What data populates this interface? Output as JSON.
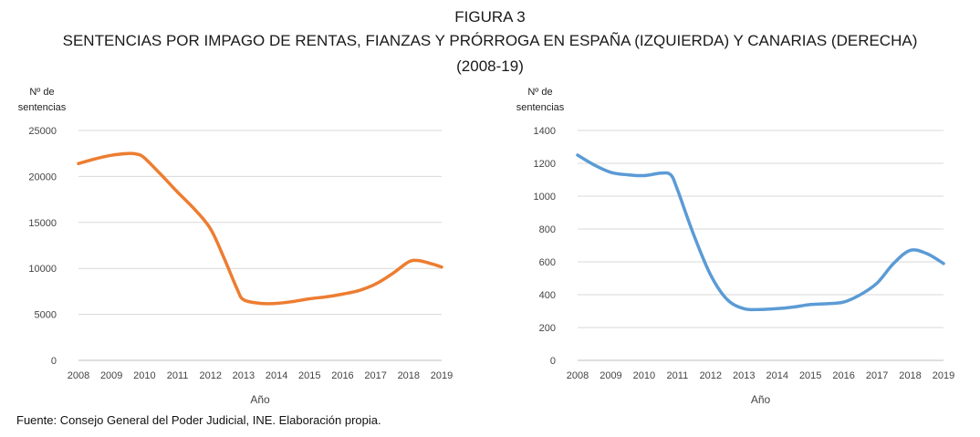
{
  "figure": {
    "label": "FIGURA 3",
    "title": "SENTENCIAS POR IMPAGO DE RENTAS, FIANZAS Y PRÓRROGA EN ESPAÑA (IZQUIERDA) Y CANARIAS (DERECHA)",
    "period": "(2008-19)"
  },
  "source": "Fuente: Consejo General del Poder Judicial, INE. Elaboración propia.",
  "colors": {
    "spain": "#ED7D31",
    "canarias": "#5B9BD5",
    "grid": "#d9d9d9"
  },
  "chart_data": [
    {
      "type": "line",
      "title": "",
      "ylabel_lines": [
        "Nº de",
        "sentencias"
      ],
      "xlabel": "Año",
      "categories": [
        "2008",
        "2009",
        "2010",
        "2011",
        "2012",
        "2013",
        "2014",
        "2015",
        "2016",
        "2017",
        "2018",
        "2019"
      ],
      "x": [
        2008,
        2008.5,
        2009,
        2009.5,
        2009.8,
        2010,
        2010.5,
        2011,
        2011.5,
        2012,
        2012.4,
        2012.8,
        2013,
        2013.5,
        2014,
        2014.5,
        2015,
        2015.5,
        2016,
        2016.5,
        2017,
        2017.5,
        2018,
        2018.3,
        2018.7,
        2019
      ],
      "values": [
        21400,
        21900,
        22300,
        22500,
        22400,
        22000,
        20200,
        18300,
        16500,
        14300,
        11200,
        7800,
        6600,
        6200,
        6200,
        6400,
        6700,
        6900,
        7200,
        7600,
        8300,
        9400,
        10700,
        10850,
        10500,
        10150
      ],
      "ylim": [
        0,
        25000
      ],
      "yticks": [
        "0",
        "5000",
        "10000",
        "15000",
        "20000",
        "25000"
      ],
      "ytick_values": [
        0,
        5000,
        10000,
        15000,
        20000,
        25000
      ],
      "grid": true,
      "legend": "none"
    },
    {
      "type": "line",
      "title": "",
      "ylabel_lines": [
        "Nº de",
        "sentencias"
      ],
      "xlabel": "Año",
      "categories": [
        "2008",
        "2009",
        "2010",
        "2011",
        "2012",
        "2013",
        "2014",
        "2015",
        "2016",
        "2017",
        "2018",
        "2019"
      ],
      "x": [
        2008,
        2008.5,
        2009,
        2009.5,
        2010,
        2010.5,
        2010.8,
        2011,
        2011.5,
        2012,
        2012.5,
        2013,
        2013.5,
        2014,
        2014.5,
        2015,
        2015.5,
        2016,
        2016.5,
        2017,
        2017.5,
        2018,
        2018.5,
        2019
      ],
      "values": [
        1250,
        1190,
        1145,
        1130,
        1125,
        1140,
        1130,
        1040,
        760,
        520,
        370,
        315,
        310,
        315,
        325,
        340,
        345,
        355,
        400,
        470,
        590,
        670,
        650,
        590
      ],
      "ylim": [
        0,
        1400
      ],
      "yticks": [
        "0",
        "200",
        "400",
        "600",
        "800",
        "1000",
        "1200",
        "1400"
      ],
      "ytick_values": [
        0,
        200,
        400,
        600,
        800,
        1000,
        1200,
        1400
      ],
      "grid": true,
      "legend": "none"
    }
  ]
}
